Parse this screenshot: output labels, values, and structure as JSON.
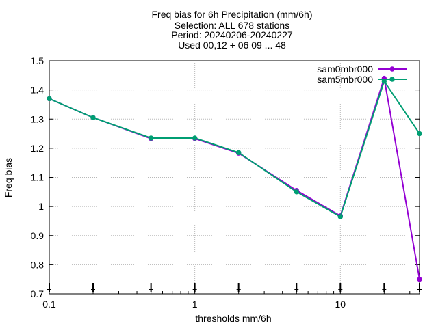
{
  "chart_data": {
    "type": "line",
    "title_lines": [
      "Freq bias  for 6h Precipitation (mm/6h)",
      "Selection: ALL    678 stations",
      "Period: 20240206-20240227",
      "Used 00,12 + 06 09 ... 48"
    ],
    "xlabel": "thresholds mm/6h",
    "ylabel": "Freq bias",
    "x_scale": "log",
    "xlim": [
      0.1,
      35
    ],
    "ylim": [
      0.7,
      1.5
    ],
    "x_ticks": [
      0.1,
      1,
      10
    ],
    "x_tick_labels": [
      "0.1",
      "1",
      "10"
    ],
    "y_ticks": [
      0.7,
      0.8,
      0.9,
      1.0,
      1.1,
      1.2,
      1.3,
      1.4,
      1.5
    ],
    "y_tick_labels": [
      "0.7",
      "0.8",
      "0.9",
      "1",
      "1.1",
      "1.2",
      "1.3",
      "1.4",
      "1.5"
    ],
    "grid": true,
    "legend_position": "top-right",
    "x": [
      0.1,
      0.2,
      0.5,
      1,
      2,
      5,
      10,
      20,
      35
    ],
    "series": [
      {
        "name": "sam0mbr000",
        "color": "#9400d3",
        "values": [
          1.37,
          1.305,
          1.233,
          1.233,
          1.183,
          1.055,
          0.968,
          1.44,
          0.75
        ]
      },
      {
        "name": "sam5mbr000",
        "color": "#009e73",
        "values": [
          1.37,
          1.305,
          1.235,
          1.235,
          1.185,
          1.05,
          0.965,
          1.43,
          1.25
        ]
      }
    ],
    "bottom_markers": {
      "x": [
        0.1,
        0.2,
        0.5,
        1,
        2,
        5,
        10,
        20,
        35
      ],
      "color": "#000000"
    }
  }
}
